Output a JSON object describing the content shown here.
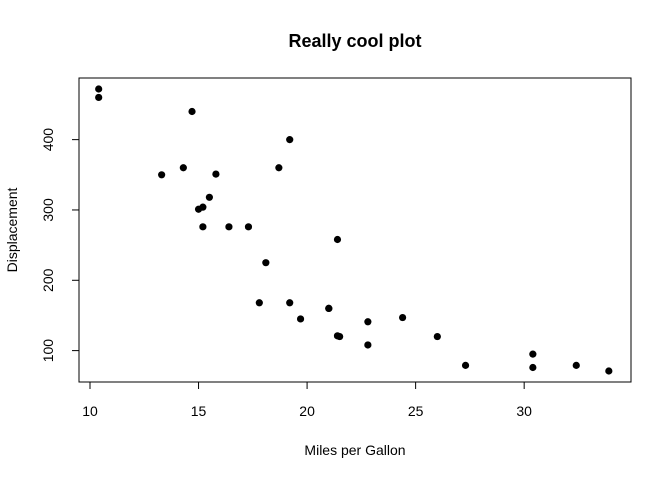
{
  "chart_data": {
    "type": "scatter",
    "title": "Really cool plot",
    "xlabel": "Miles per Gallon",
    "ylabel": "Displacement",
    "xlim": [
      10,
      34
    ],
    "ylim": [
      71,
      472
    ],
    "x_ticks": [
      10,
      15,
      20,
      25,
      30
    ],
    "y_ticks": [
      100,
      200,
      300,
      400
    ],
    "grid": false,
    "legend": "none",
    "points": [
      {
        "x": 10.4,
        "y": 472
      },
      {
        "x": 10.4,
        "y": 460
      },
      {
        "x": 13.3,
        "y": 350
      },
      {
        "x": 14.3,
        "y": 360
      },
      {
        "x": 14.7,
        "y": 440
      },
      {
        "x": 15.0,
        "y": 301
      },
      {
        "x": 15.2,
        "y": 304
      },
      {
        "x": 15.2,
        "y": 276
      },
      {
        "x": 15.5,
        "y": 318
      },
      {
        "x": 15.8,
        "y": 351
      },
      {
        "x": 16.4,
        "y": 276
      },
      {
        "x": 17.3,
        "y": 276
      },
      {
        "x": 17.8,
        "y": 168
      },
      {
        "x": 18.1,
        "y": 225
      },
      {
        "x": 18.7,
        "y": 360
      },
      {
        "x": 19.2,
        "y": 400
      },
      {
        "x": 19.2,
        "y": 168
      },
      {
        "x": 19.7,
        "y": 145
      },
      {
        "x": 21.0,
        "y": 160
      },
      {
        "x": 21.0,
        "y": 160
      },
      {
        "x": 21.4,
        "y": 258
      },
      {
        "x": 21.4,
        "y": 121
      },
      {
        "x": 21.5,
        "y": 120
      },
      {
        "x": 22.8,
        "y": 141
      },
      {
        "x": 22.8,
        "y": 108
      },
      {
        "x": 24.4,
        "y": 147
      },
      {
        "x": 26.0,
        "y": 120
      },
      {
        "x": 27.3,
        "y": 79
      },
      {
        "x": 30.4,
        "y": 95
      },
      {
        "x": 30.4,
        "y": 76
      },
      {
        "x": 32.4,
        "y": 79
      },
      {
        "x": 33.9,
        "y": 71
      }
    ]
  }
}
